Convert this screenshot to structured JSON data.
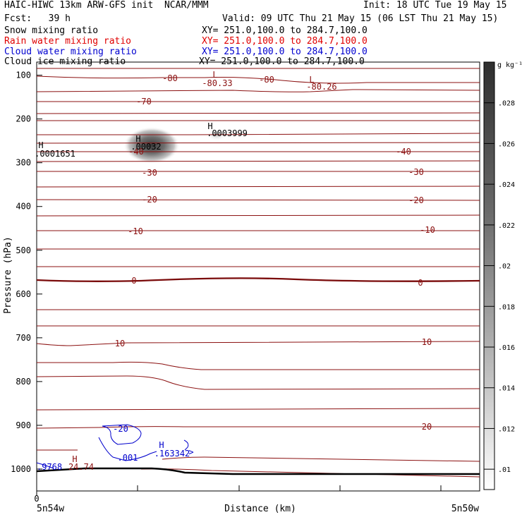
{
  "header": {
    "title": "HAIC-HIWC 13km ARW-GFS init  NCAR/MMM",
    "init": "Init: 18 UTC Tue 19 May 15",
    "fcst": "Fcst:   39 h",
    "valid": "Valid: 09 UTC Thu 21 May 15 (06 LST Thu 21 May 15)"
  },
  "fields": [
    {
      "name": "Snow mixing ratio",
      "xy": "XY= 251.0,100.0 to 284.7,100.0",
      "color": "#000000"
    },
    {
      "name": "Rain water mixing ratio",
      "xy": "XY= 251.0,100.0 to 284.7,100.0",
      "color": "#e00000"
    },
    {
      "name": "Cloud water mixing ratio",
      "xy": "XY= 251.0,100.0 to 284.7,100.0",
      "color": "#0000d0"
    },
    {
      "name": "Cloud ice mixing ratio",
      "xy": "XY= 251.0,100.0 to 284.7,100.0",
      "color": "#000000"
    }
  ],
  "chart_data": {
    "type": "cross-section",
    "ylabel": "Pressure (hPa)",
    "xlabel": "Distance (km)",
    "x_start_tick": "0",
    "x_left_label": "5n54w",
    "x_right_label": "5n50w",
    "yticks": [
      100,
      200,
      300,
      400,
      500,
      600,
      700,
      800,
      900,
      1000
    ],
    "ylim": [
      1050,
      70
    ],
    "colorbar": {
      "unit": "g kg⁻¹",
      "ticks": [
        ".028",
        ".026",
        ".024",
        ".022",
        ".02",
        ".018",
        ".016",
        ".014",
        ".012",
        ".01"
      ],
      "values": [
        0.028,
        0.026,
        0.024,
        0.022,
        0.02,
        0.018,
        0.016,
        0.014,
        0.012,
        0.01
      ],
      "range": [
        0.009,
        0.03
      ]
    },
    "temperature_contours_labeled": [
      -80,
      -70,
      -40,
      -30,
      -20,
      -10,
      0,
      10,
      20
    ],
    "temperature_color": "#8b1010",
    "cloud_water_contour_label": "-20",
    "cloud_water_min_label": ".001",
    "extrema": [
      {
        "type": "L",
        "value": "-80.33"
      },
      {
        "type": "L",
        "value": "-80.26"
      },
      {
        "type": "H",
        "value": ".0003999"
      },
      {
        "type": "H",
        "value": ".00032"
      },
      {
        "type": "H",
        "value": ".0001651"
      },
      {
        "type": "H",
        "value": ".163342"
      },
      {
        "type": "H",
        "value": "24.74"
      }
    ],
    "truncated_label": ".9768"
  }
}
